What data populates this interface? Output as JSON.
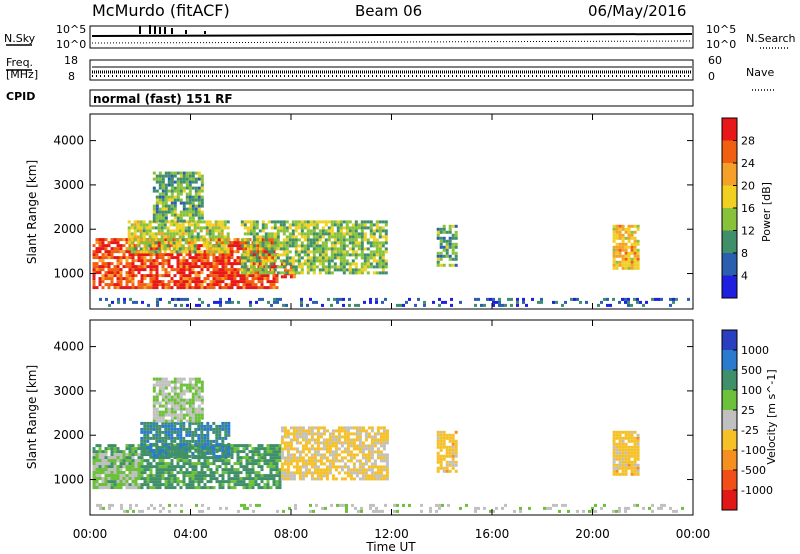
{
  "header": {
    "station": "McMurdo (fitACF)",
    "beam": "Beam 06",
    "date": "06/May/2016"
  },
  "noise_panel": {
    "left_label": "N.Sky",
    "right_label": "N.Search",
    "top_tick": "10^5",
    "bottom_tick": "10^0"
  },
  "freq_panel": {
    "left_label_line1": "Freq.",
    "left_label_line2": "[MHz]",
    "left_top": "18",
    "left_bottom": "8",
    "right_label": "Nave",
    "right_top": "60",
    "right_bottom": "0"
  },
  "cpid_panel": {
    "label": "CPID",
    "text": "normal (fast) 151 RF"
  },
  "x_axis": {
    "label": "Time UT",
    "ticks": [
      "00:00",
      "04:00",
      "08:00",
      "12:00",
      "16:00",
      "20:00",
      "00:00"
    ]
  },
  "y_axis": {
    "label": "Slant Range [km]",
    "ticks": [
      "1000",
      "2000",
      "3000",
      "4000"
    ]
  },
  "power_colorbar": {
    "label": "Power [dB]",
    "ticks": [
      "4",
      "8",
      "12",
      "16",
      "20",
      "24",
      "28"
    ],
    "colors": [
      "#1f1fe0",
      "#2a5fb0",
      "#3f8f6a",
      "#88c23a",
      "#f0d020",
      "#f5a028",
      "#f06010",
      "#e81818"
    ]
  },
  "velocity_colorbar": {
    "label": "Velocity [m s^-1]",
    "ticks": [
      "1000",
      "500",
      "100",
      "25",
      "-25",
      "-100",
      "-500",
      "-1000"
    ],
    "colors": [
      "#2a3fbf",
      "#2a7ad0",
      "#3f8f6a",
      "#6cc03a",
      "#c0c0c0",
      "#f5c028",
      "#f59020",
      "#f05018",
      "#e01818"
    ]
  },
  "chart_data": [
    {
      "type": "heatmap",
      "title": "Power",
      "xlabel": "Time UT",
      "ylabel": "Slant Range [km]",
      "xlim": [
        0,
        24
      ],
      "ylim": [
        200,
        4600
      ],
      "colorbar_label": "Power [dB]",
      "colorbar_range": [
        0,
        32
      ],
      "regions": [
        {
          "t0": 0.1,
          "t1": 7.4,
          "r0": 700,
          "r1": 1800,
          "value": 28
        },
        {
          "t0": 7.6,
          "t1": 8.1,
          "r0": 900,
          "r1": 1300,
          "value": 28
        },
        {
          "t0": 1.5,
          "t1": 5.5,
          "r0": 1500,
          "r1": 2200,
          "value": 16
        },
        {
          "t0": 2.5,
          "t1": 4.5,
          "r0": 2200,
          "r1": 3300,
          "value": 12
        },
        {
          "t0": 6.0,
          "t1": 11.8,
          "r0": 1000,
          "r1": 2200,
          "value": 14
        },
        {
          "t0": 13.8,
          "t1": 14.6,
          "r0": 1200,
          "r1": 2100,
          "value": 12
        },
        {
          "t0": 20.8,
          "t1": 21.8,
          "r0": 1100,
          "r1": 2100,
          "value": 20
        },
        {
          "t0": 0.0,
          "t1": 24.0,
          "r0": 250,
          "r1": 450,
          "value": 6
        }
      ]
    },
    {
      "type": "heatmap",
      "title": "Velocity",
      "xlabel": "Time UT",
      "ylabel": "Slant Range [km]",
      "xlim": [
        0,
        24
      ],
      "ylim": [
        200,
        4600
      ],
      "colorbar_label": "Velocity [m s^-1]",
      "colorbar_range": [
        -1000,
        1000
      ],
      "regions": [
        {
          "t0": 0.1,
          "t1": 7.6,
          "r0": 800,
          "r1": 1800,
          "value": 400
        },
        {
          "t0": 0.1,
          "t1": 2.0,
          "r0": 800,
          "r1": 1600,
          "value": 100
        },
        {
          "t0": 2.0,
          "t1": 5.5,
          "r0": 1500,
          "r1": 2300,
          "value": 500
        },
        {
          "t0": 2.5,
          "t1": 4.5,
          "r0": 2300,
          "r1": 3300,
          "value": 100
        },
        {
          "t0": 7.6,
          "t1": 11.8,
          "r0": 1000,
          "r1": 2200,
          "value": -150
        },
        {
          "t0": 13.8,
          "t1": 14.6,
          "r0": 1200,
          "r1": 2100,
          "value": -200
        },
        {
          "t0": 20.8,
          "t1": 21.8,
          "r0": 1100,
          "r1": 2100,
          "value": -200
        },
        {
          "t0": 0.0,
          "t1": 24.0,
          "r0": 250,
          "r1": 450,
          "value": 50
        }
      ]
    }
  ]
}
